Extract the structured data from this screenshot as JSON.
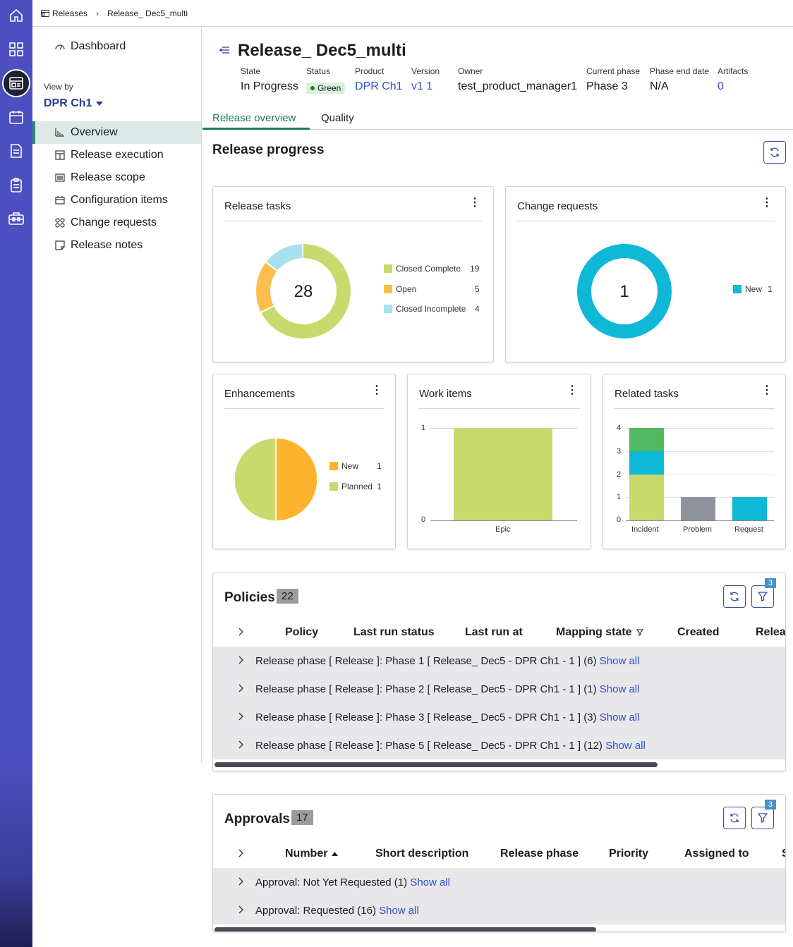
{
  "breadcrumb": {
    "root": "Releases",
    "current": "Release_ Dec5_multi"
  },
  "sidebar": {
    "dashboard": "Dashboard",
    "view_by_label": "View by",
    "view_by_value": "DPR Ch1",
    "items": [
      {
        "label": "Overview",
        "icon": "bar-chart-icon"
      },
      {
        "label": "Release execution",
        "icon": "layout-icon"
      },
      {
        "label": "Release scope",
        "icon": "list-icon"
      },
      {
        "label": "Configuration items",
        "icon": "box-icon"
      },
      {
        "label": "Change requests",
        "icon": "nodes-icon"
      },
      {
        "label": "Release notes",
        "icon": "note-icon"
      }
    ]
  },
  "header": {
    "title": "Release_ Dec5_multi",
    "fields": {
      "state": {
        "label": "State",
        "value": "In Progress"
      },
      "status": {
        "label": "Status",
        "value": "Green"
      },
      "product": {
        "label": "Product",
        "value": "DPR Ch1"
      },
      "version": {
        "label": "Version",
        "value": "v1 1"
      },
      "owner": {
        "label": "Owner",
        "value": "test_product_manager1"
      },
      "phase": {
        "label": "Current phase",
        "value": "Phase 3"
      },
      "phase_end": {
        "label": "Phase end date",
        "value": "N/A"
      },
      "artifacts": {
        "label": "Artifacts",
        "value": "0"
      }
    }
  },
  "tabs": [
    "Release overview",
    "Quality"
  ],
  "section_title": "Release progress",
  "cards": {
    "release_tasks": {
      "title": "Release tasks",
      "total": "28",
      "legend": [
        {
          "label": "Closed Complete",
          "value": 19,
          "color": "#c8da6d"
        },
        {
          "label": "Open",
          "value": 5,
          "color": "#fdbe4c"
        },
        {
          "label": "Closed Incomplete",
          "value": 4,
          "color": "#a6e2ee"
        }
      ]
    },
    "change_requests": {
      "title": "Change requests",
      "total": "1",
      "legend": [
        {
          "label": "New",
          "value": 1,
          "color": "#0eb8d6"
        }
      ]
    },
    "enhancements": {
      "title": "Enhancements",
      "legend": [
        {
          "label": "New",
          "value": 1,
          "color": "#fdb42c"
        },
        {
          "label": "Planned",
          "value": 1,
          "color": "#c8da6d"
        }
      ]
    },
    "work_items": {
      "title": "Work items"
    },
    "related_tasks": {
      "title": "Related tasks"
    }
  },
  "chart_data": [
    {
      "type": "pie",
      "title": "Release tasks",
      "categories": [
        "Closed Complete",
        "Open",
        "Closed Incomplete"
      ],
      "values": [
        19,
        5,
        4
      ]
    },
    {
      "type": "pie",
      "title": "Change requests",
      "categories": [
        "New"
      ],
      "values": [
        1
      ]
    },
    {
      "type": "pie",
      "title": "Enhancements",
      "categories": [
        "New",
        "Planned"
      ],
      "values": [
        1,
        1
      ]
    },
    {
      "type": "bar",
      "title": "Work items",
      "categories": [
        "Epic"
      ],
      "values": [
        1
      ],
      "ylim": [
        0,
        1
      ],
      "yticks": [
        "0",
        "1"
      ]
    },
    {
      "type": "bar",
      "title": "Related tasks",
      "categories": [
        "Incident",
        "Problem",
        "Request"
      ],
      "series": [
        {
          "values": [
            2,
            1,
            1
          ],
          "color_incident": "#c8da6d",
          "color_problem": "#8e939c",
          "color_request": "#0eb8d6"
        },
        {
          "values": [
            1,
            0,
            0
          ],
          "color": "#0eb8d6"
        },
        {
          "values": [
            1,
            0,
            0
          ],
          "color": "#53b862"
        }
      ],
      "ylim": [
        0,
        4
      ],
      "yticks": [
        "0",
        "1",
        "2",
        "3",
        "4"
      ]
    }
  ],
  "policies": {
    "title": "Policies",
    "count": "22",
    "filter_count": "3",
    "columns": [
      "Policy",
      "Last run status",
      "Last run at",
      "Mapping state",
      "Created",
      "Releas"
    ],
    "rows": [
      {
        "text": "Release phase [ Release ]: Phase 1 [ Release_ Dec5 - DPR Ch1 - 1 ] (6)",
        "link": "Show all"
      },
      {
        "text": "Release phase [ Release ]: Phase 2 [ Release_ Dec5 - DPR Ch1 - 1 ] (1)",
        "link": "Show all"
      },
      {
        "text": "Release phase [ Release ]: Phase 3 [ Release_ Dec5 - DPR Ch1 - 1 ] (3)",
        "link": "Show all"
      },
      {
        "text": "Release phase [ Release ]: Phase 5 [ Release_ Dec5 - DPR Ch1 - 1 ] (12)",
        "link": "Show all"
      }
    ]
  },
  "approvals": {
    "title": "Approvals",
    "count": "17",
    "filter_count": "3",
    "columns": [
      "Number",
      "Short description",
      "Release phase",
      "Priority",
      "Assigned to",
      "S"
    ],
    "rows": [
      {
        "text": "Approval: Not Yet Requested (1)",
        "link": "Show all"
      },
      {
        "text": "Approval: Requested (16)",
        "link": "Show all"
      }
    ]
  }
}
